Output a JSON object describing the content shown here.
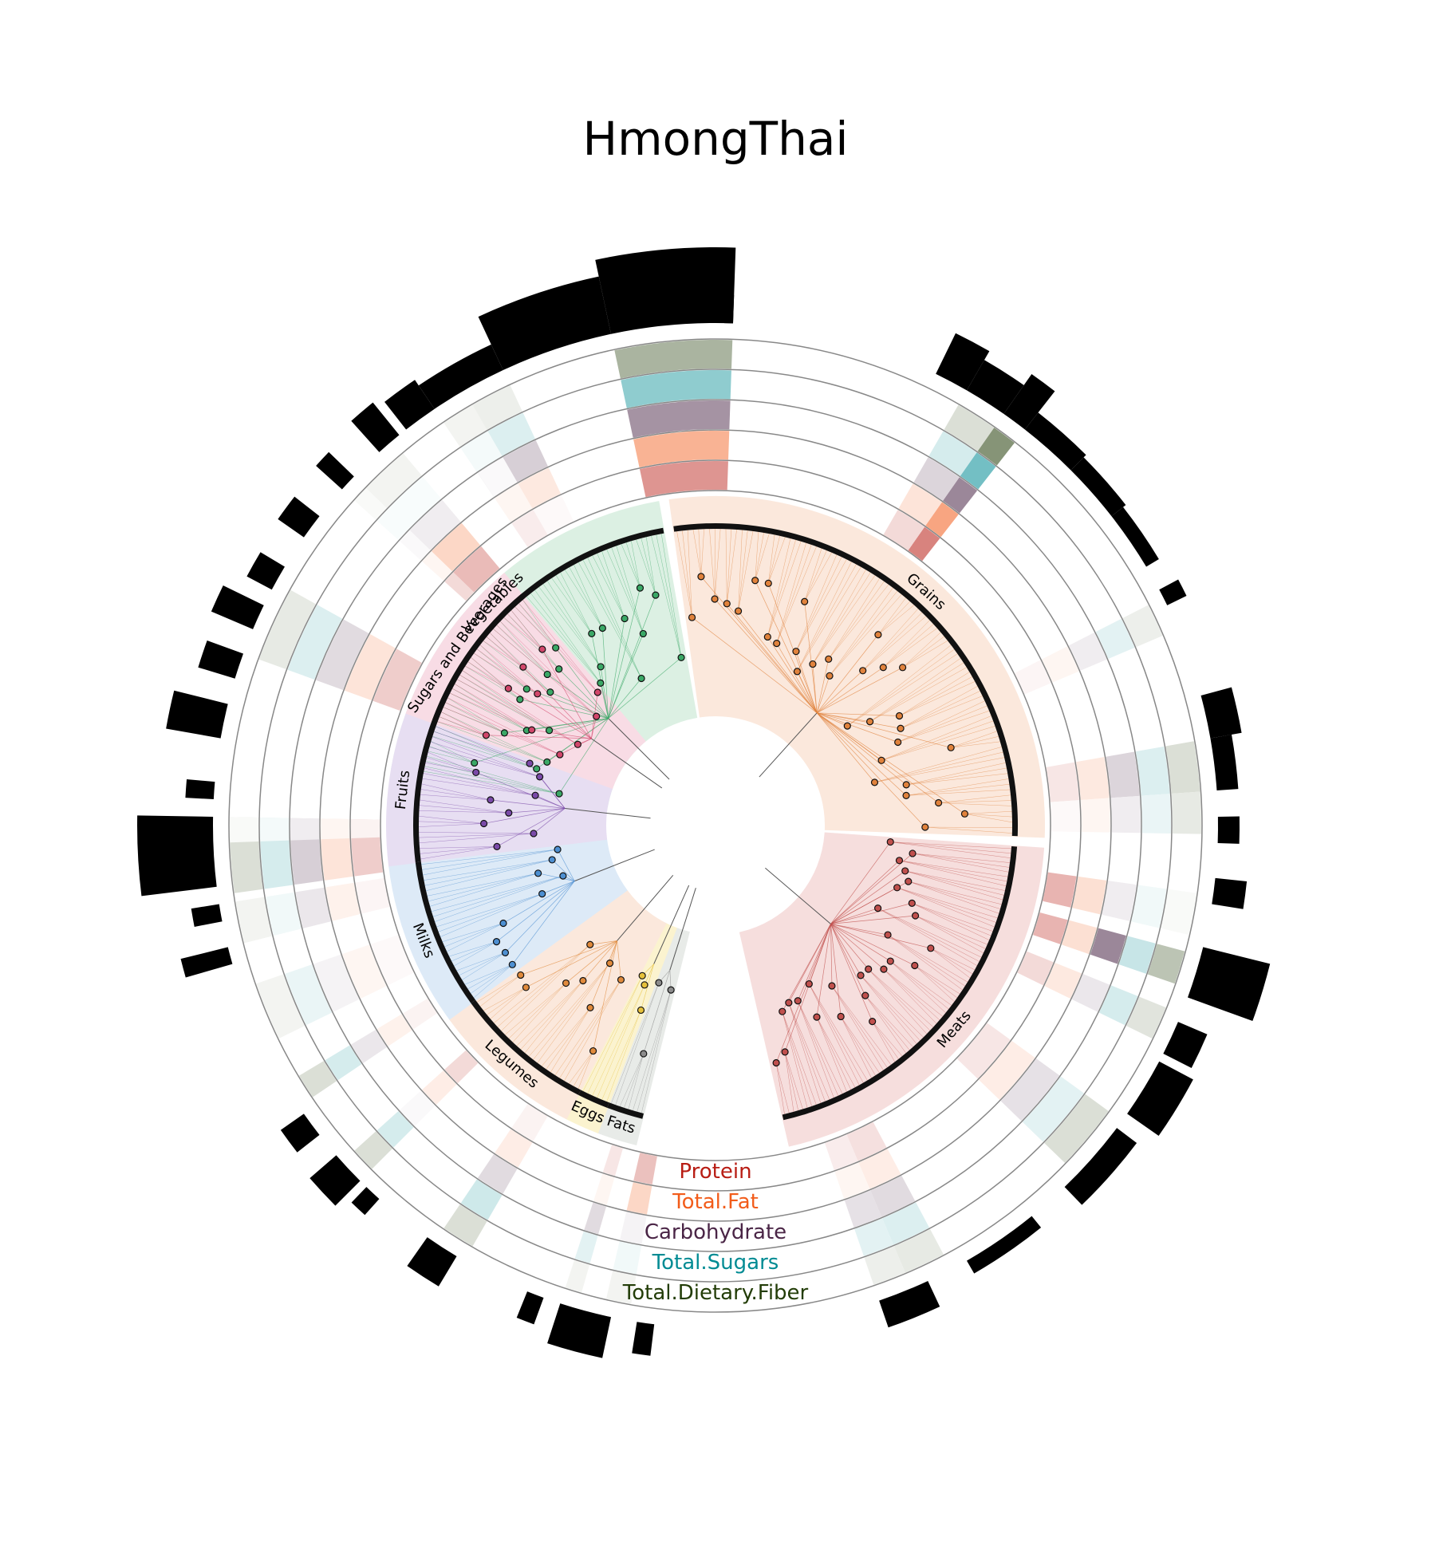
{
  "title": "HmongThai",
  "groups": [
    {
      "name": "Vegetables",
      "color": "#3aa866",
      "fill": "#dcf0e3",
      "start": 280,
      "end": 350,
      "leaves": 70
    },
    {
      "name": "Grains",
      "color": "#e0823c",
      "fill": "#fbe8dc",
      "start": 352,
      "end": 452,
      "leaves": 95
    },
    {
      "name": "Meats",
      "color": "#c0504d",
      "fill": "#f6dedd",
      "start": 454,
      "end": 527,
      "leaves": 80
    },
    {
      "name": "Fats",
      "color": "#8c8c8c",
      "fill": "#e8ebe8",
      "start": 554,
      "end": 561,
      "leaves": 8
    },
    {
      "name": "Eggs",
      "color": "#e6c13c",
      "fill": "#fbf3cf",
      "start": 561,
      "end": 567,
      "leaves": 6
    },
    {
      "name": "Legumes",
      "color": "#e08a3c",
      "fill": "#fbe8dc",
      "start": 567,
      "end": 594,
      "leaves": 26
    },
    {
      "name": "Milks",
      "color": "#4d8fd1",
      "fill": "#ddeaf7",
      "start": 594,
      "end": 623,
      "leaves": 28
    },
    {
      "name": "Fruits",
      "color": "#7a4aa8",
      "fill": "#e7def2",
      "start": 623,
      "end": 650,
      "leaves": 26
    },
    {
      "name": "Sugars and Beverages",
      "color": "#d1476b",
      "fill": "#f8dce5",
      "start": 650,
      "end": 680,
      "leaves": 30
    }
  ],
  "rings": [
    {
      "name": "Protein",
      "color": "#b81d14"
    },
    {
      "name": "Total.Fat",
      "color": "#f25c1a"
    },
    {
      "name": "Carbohydrate",
      "color": "#4a2546"
    },
    {
      "name": "Total.Sugars",
      "color": "#008b93"
    },
    {
      "name": "Total.Dietary.Fiber",
      "color": "#233d08"
    }
  ],
  "ring_segments": [
    {
      "start": 348,
      "end": 362,
      "v": [
        0.85,
        0.85,
        0.9,
        0.8,
        0.7
      ]
    },
    {
      "start": 326,
      "end": 335,
      "v": [
        0.05,
        0.25,
        0.4,
        0.25,
        0.15
      ]
    },
    {
      "start": 314,
      "end": 320,
      "v": [
        0.55,
        0.45,
        0.15,
        0.05,
        0.1
      ]
    },
    {
      "start": 312,
      "end": 314,
      "v": [
        0.3,
        0.1,
        0.05,
        0.05,
        0.05
      ]
    },
    {
      "start": 290,
      "end": 299,
      "v": [
        0.4,
        0.3,
        0.3,
        0.25,
        0.2
      ]
    },
    {
      "start": 326,
      "end": 330,
      "v": [
        0.15,
        0.1,
        0.05,
        0.08,
        0.1
      ]
    },
    {
      "start": 35,
      "end": 38,
      "v": [
        1.0,
        1.0,
        1.0,
        1.0,
        1.0
      ]
    },
    {
      "start": 30,
      "end": 35,
      "v": [
        0.3,
        0.3,
        0.35,
        0.3,
        0.3
      ]
    },
    {
      "start": 63,
      "end": 67,
      "v": [
        0.08,
        0.1,
        0.15,
        0.2,
        0.15
      ]
    },
    {
      "start": 80,
      "end": 86,
      "v": [
        0.2,
        0.25,
        0.35,
        0.25,
        0.3
      ]
    },
    {
      "start": 86,
      "end": 91,
      "v": [
        0.05,
        0.1,
        0.15,
        0.15,
        0.2
      ]
    },
    {
      "start": 98,
      "end": 103,
      "v": [
        0.6,
        0.35,
        0.15,
        0.1,
        0.05
      ]
    },
    {
      "start": 105,
      "end": 109,
      "v": [
        0.6,
        0.35,
        1.0,
        0.4,
        0.55
      ]
    },
    {
      "start": 112,
      "end": 116,
      "v": [
        0.3,
        0.25,
        0.2,
        0.3,
        0.25
      ]
    },
    {
      "start": 126,
      "end": 134,
      "v": [
        0.2,
        0.2,
        0.25,
        0.2,
        0.3
      ]
    },
    {
      "start": 152,
      "end": 157,
      "v": [
        0.25,
        0.2,
        0.3,
        0.25,
        0.2
      ]
    },
    {
      "start": 157,
      "end": 161,
      "v": [
        0.15,
        0.1,
        0.25,
        0.2,
        0.15
      ]
    },
    {
      "start": 190,
      "end": 193,
      "v": [
        0.5,
        0.45,
        0.1,
        0.1,
        0.1
      ]
    },
    {
      "start": 196,
      "end": 198,
      "v": [
        0.2,
        0.1,
        0.3,
        0.2,
        0.1
      ]
    },
    {
      "start": 210,
      "end": 214,
      "v": [
        0.1,
        0.2,
        0.3,
        0.35,
        0.3
      ]
    },
    {
      "start": 225,
      "end": 228,
      "v": [
        0.3,
        0.2,
        0.05,
        0.3,
        0.3
      ]
    },
    {
      "start": 236,
      "end": 239,
      "v": [
        0.1,
        0.15,
        0.2,
        0.3,
        0.3
      ]
    },
    {
      "start": 262,
      "end": 271,
      "v": [
        0.4,
        0.3,
        0.4,
        0.3,
        0.3
      ]
    },
    {
      "start": 268,
      "end": 271,
      "v": [
        0.1,
        0.1,
        0.15,
        0.08,
        0.05
      ]
    },
    {
      "start": 244,
      "end": 251,
      "v": [
        0.05,
        0.1,
        0.1,
        0.15,
        0.1
      ]
    },
    {
      "start": 256,
      "end": 261,
      "v": [
        0.08,
        0.15,
        0.2,
        0.1,
        0.1
      ]
    }
  ],
  "ring_colors": [
    "#b81d14",
    "#f25c1a",
    "#4a2546",
    "#008b93",
    "#233d08"
  ],
  "bar_segments": [
    {
      "start": 348,
      "end": 362,
      "h": 1.0
    },
    {
      "start": 335,
      "end": 348,
      "h": 0.75
    },
    {
      "start": 326,
      "end": 335,
      "h": 0.3
    },
    {
      "start": 322,
      "end": 326,
      "h": 0.4
    },
    {
      "start": 318,
      "end": 321,
      "h": 0.5
    },
    {
      "start": 312,
      "end": 314,
      "h": 0.4
    },
    {
      "start": 305,
      "end": 308,
      "h": 0.35
    },
    {
      "start": 298,
      "end": 301,
      "h": 0.3
    },
    {
      "start": 293,
      "end": 296,
      "h": 0.55
    },
    {
      "start": 287,
      "end": 290,
      "h": 0.45
    },
    {
      "start": 280,
      "end": 284,
      "h": 0.7
    },
    {
      "start": 273,
      "end": 275,
      "h": 0.3
    },
    {
      "start": 263,
      "end": 271,
      "h": 1.0
    },
    {
      "start": 259,
      "end": 261,
      "h": 0.3
    },
    {
      "start": 254,
      "end": 256,
      "h": 0.6
    },
    {
      "start": 1,
      "end": 2,
      "h": 0.3
    },
    {
      "start": 26,
      "end": 30,
      "h": 0.55
    },
    {
      "start": 30,
      "end": 35,
      "h": 0.4
    },
    {
      "start": 35,
      "end": 38,
      "h": 0.6
    },
    {
      "start": 38,
      "end": 45,
      "h": 0.2
    },
    {
      "start": 45,
      "end": 52,
      "h": 0.15
    },
    {
      "start": 52,
      "end": 59,
      "h": 0.1
    },
    {
      "start": 62,
      "end": 64,
      "h": 0.2
    },
    {
      "start": 75,
      "end": 80,
      "h": 0.35
    },
    {
      "start": 80,
      "end": 86,
      "h": 0.2
    },
    {
      "start": 89,
      "end": 92,
      "h": 0.2
    },
    {
      "start": 96,
      "end": 99,
      "h": 0.35
    },
    {
      "start": 104,
      "end": 110,
      "h": 0.9
    },
    {
      "start": 113,
      "end": 117,
      "h": 0.35
    },
    {
      "start": 118,
      "end": 125,
      "h": 0.45
    },
    {
      "start": 127,
      "end": 136,
      "h": 0.25
    },
    {
      "start": 141,
      "end": 150,
      "h": 0.1
    },
    {
      "start": 155,
      "end": 161,
      "h": 0.3
    },
    {
      "start": 187,
      "end": 189,
      "h": 0.35
    },
    {
      "start": 192,
      "end": 198,
      "h": 0.5
    },
    {
      "start": 200,
      "end": 202,
      "h": 0.3
    },
    {
      "start": 211,
      "end": 215,
      "h": 0.4
    },
    {
      "start": 222,
      "end": 224,
      "h": 0.2
    },
    {
      "start": 225,
      "end": 229,
      "h": 0.4
    },
    {
      "start": 232,
      "end": 235,
      "h": 0.3
    }
  ]
}
